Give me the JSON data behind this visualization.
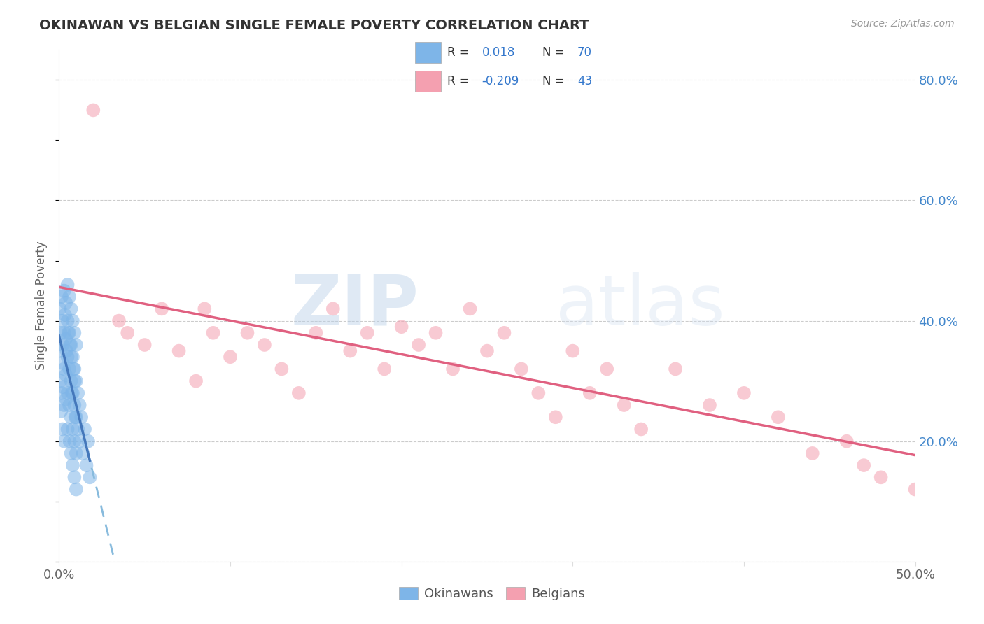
{
  "title": "OKINAWAN VS BELGIAN SINGLE FEMALE POVERTY CORRELATION CHART",
  "source": "Source: ZipAtlas.com",
  "ylabel": "Single Female Poverty",
  "xlim": [
    0.0,
    0.5
  ],
  "ylim": [
    0.0,
    0.85
  ],
  "xticks": [
    0.0,
    0.1,
    0.2,
    0.3,
    0.4,
    0.5
  ],
  "xtick_labels": [
    "0.0%",
    "",
    "",
    "",
    "",
    "50.0%"
  ],
  "yticks": [
    0.2,
    0.4,
    0.6,
    0.8
  ],
  "ytick_labels": [
    "20.0%",
    "40.0%",
    "60.0%",
    "80.0%"
  ],
  "okinawan_color": "#7eb5e8",
  "belgian_color": "#f4a0b0",
  "trend_blue_solid": "#4477bb",
  "trend_blue_dashed": "#88bbdd",
  "trend_pink": "#e06080",
  "watermark_zip": "ZIP",
  "watermark_atlas": "atlas",
  "legend_label_1": "Okinawans",
  "legend_label_2": "Belgians",
  "background_color": "#ffffff",
  "grid_color": "#cccccc",
  "okinawan_x": [
    0.0005,
    0.0008,
    0.001,
    0.001,
    0.0012,
    0.0015,
    0.0015,
    0.002,
    0.002,
    0.002,
    0.0022,
    0.0025,
    0.003,
    0.003,
    0.003,
    0.003,
    0.003,
    0.0035,
    0.004,
    0.004,
    0.004,
    0.0042,
    0.0045,
    0.005,
    0.005,
    0.005,
    0.005,
    0.005,
    0.0055,
    0.006,
    0.006,
    0.006,
    0.006,
    0.0062,
    0.0065,
    0.007,
    0.007,
    0.007,
    0.007,
    0.007,
    0.0072,
    0.0075,
    0.008,
    0.008,
    0.008,
    0.008,
    0.008,
    0.0085,
    0.009,
    0.009,
    0.009,
    0.009,
    0.009,
    0.0092,
    0.0095,
    0.01,
    0.01,
    0.01,
    0.01,
    0.01,
    0.011,
    0.011,
    0.012,
    0.012,
    0.013,
    0.014,
    0.015,
    0.016,
    0.017,
    0.018
  ],
  "okinawan_y": [
    0.42,
    0.35,
    0.3,
    0.38,
    0.25,
    0.44,
    0.28,
    0.4,
    0.33,
    0.22,
    0.36,
    0.29,
    0.45,
    0.38,
    0.32,
    0.26,
    0.2,
    0.41,
    0.43,
    0.37,
    0.31,
    0.27,
    0.35,
    0.46,
    0.4,
    0.34,
    0.28,
    0.22,
    0.38,
    0.44,
    0.38,
    0.32,
    0.26,
    0.2,
    0.36,
    0.42,
    0.36,
    0.3,
    0.24,
    0.18,
    0.34,
    0.28,
    0.4,
    0.34,
    0.28,
    0.22,
    0.16,
    0.32,
    0.38,
    0.32,
    0.26,
    0.2,
    0.14,
    0.3,
    0.24,
    0.36,
    0.3,
    0.24,
    0.18,
    0.12,
    0.28,
    0.22,
    0.26,
    0.2,
    0.24,
    0.18,
    0.22,
    0.16,
    0.2,
    0.14
  ],
  "belgian_x": [
    0.02,
    0.035,
    0.04,
    0.05,
    0.06,
    0.07,
    0.08,
    0.085,
    0.09,
    0.1,
    0.11,
    0.12,
    0.13,
    0.14,
    0.15,
    0.16,
    0.17,
    0.18,
    0.19,
    0.2,
    0.21,
    0.22,
    0.23,
    0.24,
    0.25,
    0.26,
    0.27,
    0.28,
    0.29,
    0.3,
    0.31,
    0.32,
    0.33,
    0.34,
    0.36,
    0.38,
    0.4,
    0.42,
    0.44,
    0.46,
    0.47,
    0.48,
    0.5
  ],
  "belgian_y": [
    0.75,
    0.4,
    0.38,
    0.36,
    0.42,
    0.35,
    0.3,
    0.42,
    0.38,
    0.34,
    0.38,
    0.36,
    0.32,
    0.28,
    0.38,
    0.42,
    0.35,
    0.38,
    0.32,
    0.39,
    0.36,
    0.38,
    0.32,
    0.42,
    0.35,
    0.38,
    0.32,
    0.28,
    0.24,
    0.35,
    0.28,
    0.32,
    0.26,
    0.22,
    0.32,
    0.26,
    0.28,
    0.24,
    0.18,
    0.2,
    0.16,
    0.14,
    0.12
  ]
}
